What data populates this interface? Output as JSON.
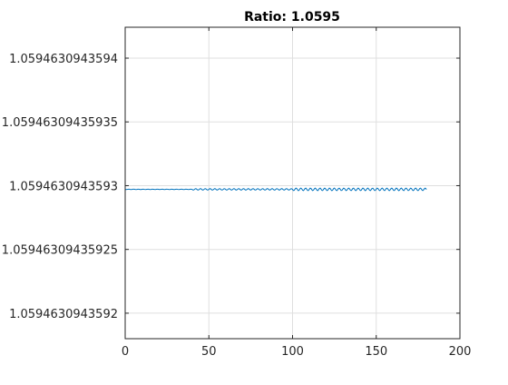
{
  "chart_data": {
    "type": "line",
    "title": "Ratio: 1.0595",
    "xlabel": "",
    "ylabel": "",
    "xlim": [
      0,
      200
    ],
    "ylim": [
      1.05946309435918,
      1.059463094359424
    ],
    "grid": true,
    "legend": "none",
    "x_ticks": [
      0,
      50,
      100,
      150,
      200
    ],
    "x_tick_labels": [
      "0",
      "50",
      "100",
      "150",
      "200"
    ],
    "y_ticks": [
      1.0594630943592,
      1.05946309435925,
      1.0594630943593,
      1.05946309435935,
      1.0594630943594
    ],
    "y_tick_labels": [
      "1.0594630943592",
      "1.05946309435925",
      "1.0594630943593",
      "1.05946309435935",
      "1.0594630943594"
    ],
    "series": [
      {
        "color": "#0072bd",
        "x": [
          0,
          10,
          20,
          30,
          40,
          50,
          60,
          70,
          80,
          90,
          100,
          110,
          120,
          130,
          140,
          150,
          160,
          170,
          180
        ],
        "y": [
          1.059463094359297,
          1.059463094359297,
          1.059463094359297,
          1.059463094359297,
          1.059463094359297,
          1.059463094359297,
          1.059463094359297,
          1.059463094359297,
          1.059463094359297,
          1.059463094359297,
          1.059463094359297,
          1.059463094359297,
          1.059463094359297,
          1.059463094359297,
          1.059463094359297,
          1.059463094359297,
          1.059463094359297,
          1.059463094359297,
          1.059463094359297
        ]
      }
    ]
  },
  "colors": {
    "axis": "#262626",
    "grid": "#dfdfdf",
    "line": "#0072bd"
  }
}
